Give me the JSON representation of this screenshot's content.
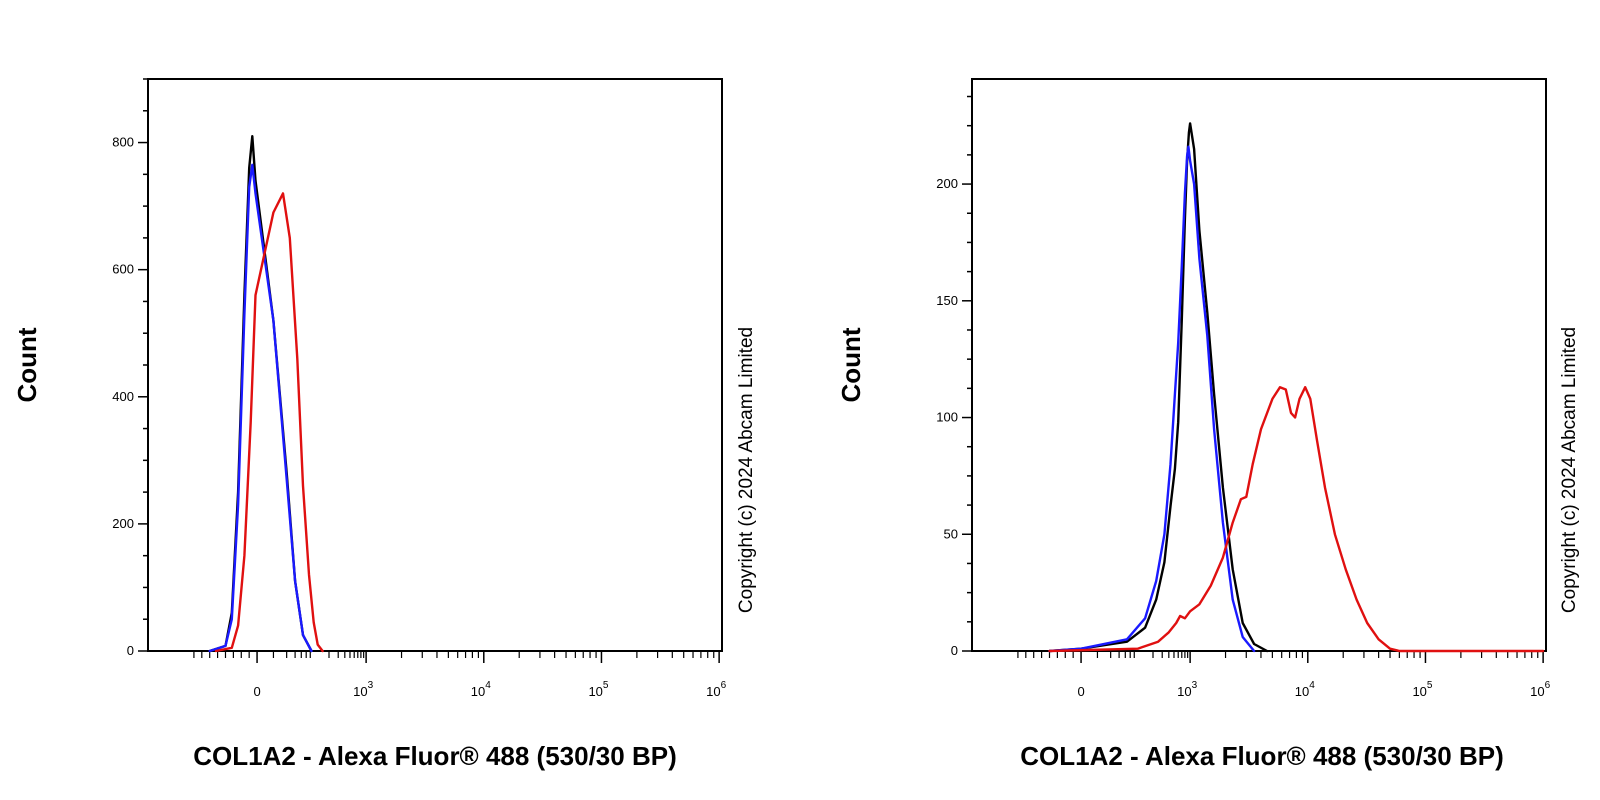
{
  "chart_data": [
    {
      "type": "line",
      "title": "",
      "xlabel": "COL1A2 - Alexa Fluor® 488 (530/30 BP)",
      "ylabel": "Count",
      "x_scale": "biexponential",
      "xlim": [
        -200,
        1000000
      ],
      "ylim": [
        0,
        900
      ],
      "y_ticks": [
        0,
        200,
        400,
        600,
        800
      ],
      "x_ticks": [
        {
          "value": 0,
          "base": "0",
          "exp": ""
        },
        {
          "value": 1000,
          "base": "10",
          "exp": "3"
        },
        {
          "value": 10000,
          "base": "10",
          "exp": "4"
        },
        {
          "value": 100000,
          "base": "10",
          "exp": "5"
        },
        {
          "value": 1000000,
          "base": "10",
          "exp": "6"
        }
      ],
      "copyright": "Copyright (c) 2024 Abcam Limited",
      "grid": false,
      "series": [
        {
          "color": "#000000",
          "points": [
            [
              -150,
              0
            ],
            [
              -100,
              8
            ],
            [
              -80,
              60
            ],
            [
              -60,
              250
            ],
            [
              -40,
              560
            ],
            [
              -25,
              760
            ],
            [
              -15,
              810
            ],
            [
              -5,
              740
            ],
            [
              10,
              520
            ],
            [
              25,
              280
            ],
            [
              40,
              110
            ],
            [
              60,
              25
            ],
            [
              90,
              0
            ]
          ]
        },
        {
          "color": "#1a1aff",
          "points": [
            [
              -150,
              0
            ],
            [
              -100,
              8
            ],
            [
              -80,
              50
            ],
            [
              -60,
              230
            ],
            [
              -40,
              530
            ],
            [
              -25,
              730
            ],
            [
              -15,
              765
            ],
            [
              -5,
              720
            ],
            [
              10,
              520
            ],
            [
              25,
              270
            ],
            [
              40,
              110
            ],
            [
              60,
              25
            ],
            [
              90,
              0
            ]
          ]
        },
        {
          "color": "#e01010",
          "points": [
            [
              -130,
              0
            ],
            [
              -80,
              5
            ],
            [
              -60,
              40
            ],
            [
              -40,
              150
            ],
            [
              -20,
              360
            ],
            [
              -5,
              560
            ],
            [
              10,
              690
            ],
            [
              20,
              720
            ],
            [
              30,
              650
            ],
            [
              45,
              460
            ],
            [
              60,
              260
            ],
            [
              80,
              120
            ],
            [
              100,
              45
            ],
            [
              120,
              10
            ],
            [
              150,
              0
            ]
          ]
        }
      ]
    },
    {
      "type": "line",
      "title": "",
      "xlabel": "COL1A2 - Alexa Fluor® 488 (530/30 BP)",
      "ylabel": "Count",
      "x_scale": "biexponential",
      "xlim": [
        -200,
        1000000
      ],
      "ylim": [
        0,
        245
      ],
      "y_ticks": [
        0,
        50,
        100,
        150,
        200
      ],
      "x_ticks": [
        {
          "value": 0,
          "base": "0",
          "exp": ""
        },
        {
          "value": 1000,
          "base": "10",
          "exp": "3"
        },
        {
          "value": 10000,
          "base": "10",
          "exp": "4"
        },
        {
          "value": 100000,
          "base": "10",
          "exp": "5"
        },
        {
          "value": 1000000,
          "base": "10",
          "exp": "6"
        }
      ],
      "copyright": "Copyright (c) 2024 Abcam Limited",
      "grid": false,
      "series": [
        {
          "color": "#000000",
          "points": [
            [
              -100,
              0
            ],
            [
              0,
              1
            ],
            [
              60,
              4
            ],
            [
              140,
              10
            ],
            [
              230,
              22
            ],
            [
              330,
              38
            ],
            [
              430,
              62
            ],
            [
              520,
              78
            ],
            [
              600,
              98
            ],
            [
              700,
              142
            ],
            [
              800,
              185
            ],
            [
              880,
              210
            ],
            [
              950,
              222
            ],
            [
              1000,
              226
            ],
            [
              1080,
              215
            ],
            [
              1200,
              180
            ],
            [
              1400,
              145
            ],
            [
              1600,
              110
            ],
            [
              1900,
              70
            ],
            [
              2300,
              35
            ],
            [
              2800,
              12
            ],
            [
              3500,
              3
            ],
            [
              4500,
              0
            ]
          ]
        },
        {
          "color": "#1a1aff",
          "points": [
            [
              -100,
              0
            ],
            [
              0,
              1
            ],
            [
              60,
              5
            ],
            [
              140,
              14
            ],
            [
              230,
              30
            ],
            [
              330,
              50
            ],
            [
              430,
              80
            ],
            [
              520,
              110
            ],
            [
              600,
              132
            ],
            [
              700,
              165
            ],
            [
              800,
              196
            ],
            [
              880,
              212
            ],
            [
              930,
              216
            ],
            [
              1000,
              210
            ],
            [
              1080,
              200
            ],
            [
              1200,
              168
            ],
            [
              1400,
              135
            ],
            [
              1600,
              95
            ],
            [
              1900,
              55
            ],
            [
              2300,
              22
            ],
            [
              2800,
              6
            ],
            [
              3500,
              0
            ]
          ]
        },
        {
          "color": "#e01010",
          "points": [
            [
              -100,
              0
            ],
            [
              100,
              1
            ],
            [
              250,
              4
            ],
            [
              400,
              8
            ],
            [
              550,
              12
            ],
            [
              650,
              15
            ],
            [
              800,
              14
            ],
            [
              1000,
              17
            ],
            [
              1200,
              20
            ],
            [
              1500,
              28
            ],
            [
              1900,
              40
            ],
            [
              2300,
              55
            ],
            [
              2700,
              65
            ],
            [
              3000,
              66
            ],
            [
              3400,
              80
            ],
            [
              4000,
              95
            ],
            [
              5000,
              108
            ],
            [
              5800,
              113
            ],
            [
              6500,
              112
            ],
            [
              7200,
              102
            ],
            [
              7800,
              100
            ],
            [
              8500,
              108
            ],
            [
              9500,
              113
            ],
            [
              10500,
              108
            ],
            [
              12000,
              90
            ],
            [
              14000,
              70
            ],
            [
              17000,
              50
            ],
            [
              21000,
              35
            ],
            [
              26000,
              22
            ],
            [
              32000,
              12
            ],
            [
              40000,
              5
            ],
            [
              50000,
              1
            ],
            [
              60000,
              0
            ],
            [
              1000000,
              0
            ]
          ]
        }
      ]
    }
  ]
}
